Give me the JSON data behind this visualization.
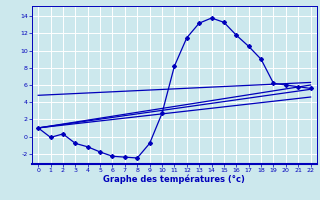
{
  "xlabel": "Graphe des températures (°c)",
  "bg_color": "#cce8ed",
  "grid_color": "#ffffff",
  "line_color": "#0000bb",
  "xlim": [
    -0.5,
    22.5
  ],
  "ylim": [
    -3.2,
    15.2
  ],
  "xticks": [
    0,
    1,
    2,
    3,
    4,
    5,
    6,
    7,
    8,
    9,
    10,
    11,
    12,
    13,
    14,
    15,
    16,
    17,
    18,
    19,
    20,
    21,
    22
  ],
  "yticks": [
    -2,
    0,
    2,
    4,
    6,
    8,
    10,
    12,
    14
  ],
  "curve_x": [
    0,
    1,
    2,
    3,
    4,
    5,
    6,
    7,
    8,
    9,
    10,
    11,
    12,
    13,
    14,
    15,
    16,
    17,
    18,
    19,
    20,
    21,
    22
  ],
  "curve_y": [
    1.0,
    -0.1,
    0.3,
    -0.8,
    -1.2,
    -1.8,
    -2.3,
    -2.4,
    -2.5,
    -0.8,
    2.7,
    8.2,
    11.5,
    13.2,
    13.8,
    13.3,
    11.8,
    10.5,
    9.0,
    6.2,
    6.0,
    5.8,
    5.6
  ],
  "trend_lines": [
    {
      "x": [
        0,
        22
      ],
      "y": [
        1.0,
        6.2
      ]
    },
    {
      "x": [
        0,
        22
      ],
      "y": [
        1.0,
        5.6
      ]
    },
    {
      "x": [
        0,
        22
      ],
      "y": [
        0.5,
        4.8
      ]
    }
  ],
  "upper_trend": {
    "x": [
      0,
      22
    ],
    "y": [
      4.8,
      6.2
    ]
  }
}
